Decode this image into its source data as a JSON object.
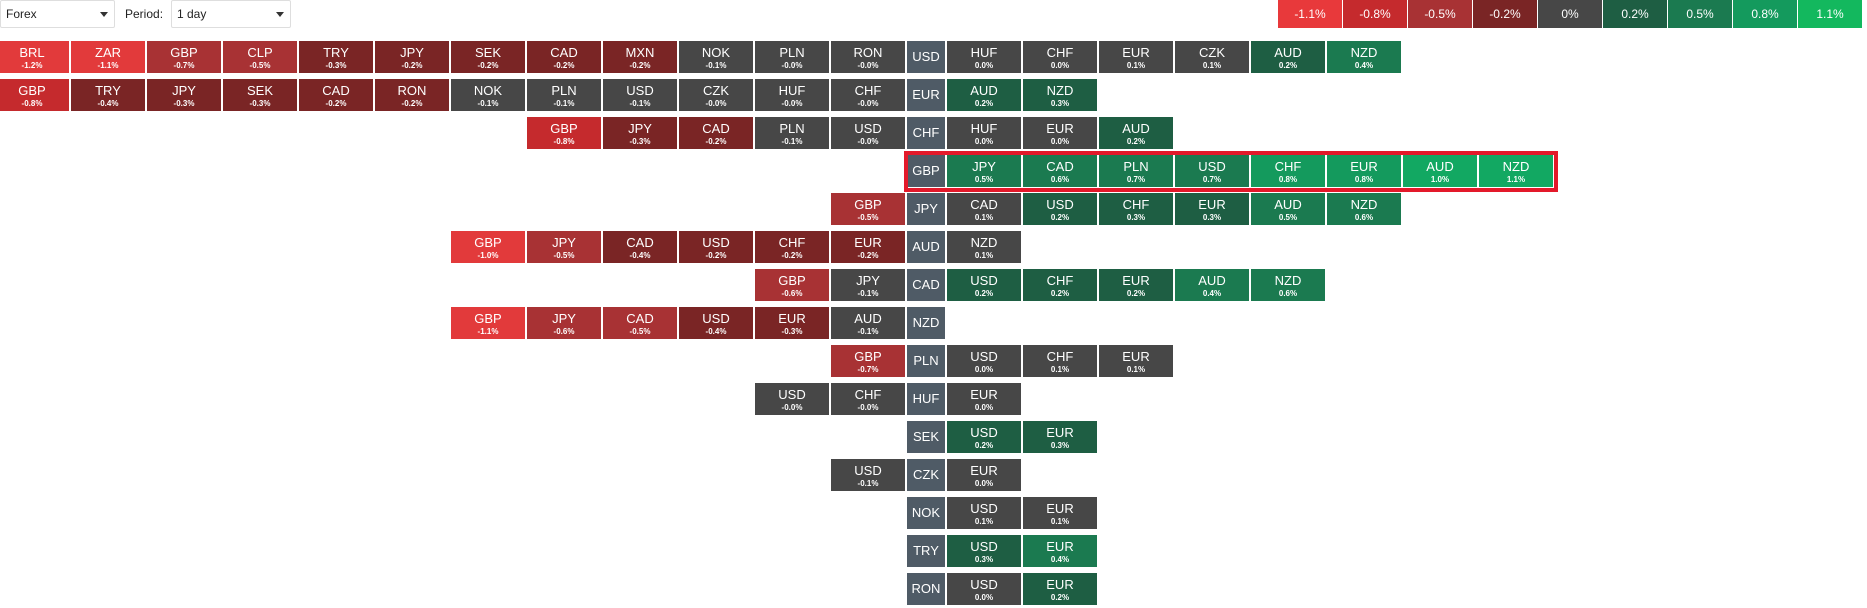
{
  "toolbar": {
    "market": "Forex",
    "period_label": "Period:",
    "period": "1 day"
  },
  "legend": [
    {
      "label": "-1.1%",
      "color": "#e8393b"
    },
    {
      "label": "-0.8%",
      "color": "#c52a2d"
    },
    {
      "label": "-0.5%",
      "color": "#a83234"
    },
    {
      "label": "-0.2%",
      "color": "#7a2525"
    },
    {
      "label": "0%",
      "color": "#474747"
    },
    {
      "label": "0.2%",
      "color": "#1e5e43"
    },
    {
      "label": "0.5%",
      "color": "#1b7a50"
    },
    {
      "label": "0.8%",
      "color": "#149a5d"
    },
    {
      "label": "1.1%",
      "color": "#13b85e"
    }
  ],
  "heatmap": {
    "rows": [
      {
        "base": "USD",
        "left": [
          [
            "BRL",
            "-1.2%"
          ],
          [
            "ZAR",
            "-1.1%"
          ],
          [
            "GBP",
            "-0.7%"
          ],
          [
            "CLP",
            "-0.5%"
          ],
          [
            "TRY",
            "-0.3%"
          ],
          [
            "JPY",
            "-0.2%"
          ],
          [
            "SEK",
            "-0.2%"
          ],
          [
            "CAD",
            "-0.2%"
          ],
          [
            "MXN",
            "-0.2%"
          ],
          [
            "NOK",
            "-0.1%"
          ],
          [
            "PLN",
            "-0.0%"
          ],
          [
            "RON",
            "-0.0%"
          ]
        ],
        "right": [
          [
            "HUF",
            "0.0%"
          ],
          [
            "CHF",
            "0.0%"
          ],
          [
            "EUR",
            "0.1%"
          ],
          [
            "CZK",
            "0.1%"
          ],
          [
            "AUD",
            "0.2%"
          ],
          [
            "NZD",
            "0.4%"
          ]
        ]
      },
      {
        "base": "EUR",
        "left": [
          [
            "GBP",
            "-0.8%"
          ],
          [
            "TRY",
            "-0.4%"
          ],
          [
            "JPY",
            "-0.3%"
          ],
          [
            "SEK",
            "-0.3%"
          ],
          [
            "CAD",
            "-0.2%"
          ],
          [
            "RON",
            "-0.2%"
          ],
          [
            "NOK",
            "-0.1%"
          ],
          [
            "PLN",
            "-0.1%"
          ],
          [
            "USD",
            "-0.1%"
          ],
          [
            "CZK",
            "-0.0%"
          ],
          [
            "HUF",
            "-0.0%"
          ],
          [
            "CHF",
            "-0.0%"
          ]
        ],
        "right": [
          [
            "AUD",
            "0.2%"
          ],
          [
            "NZD",
            "0.3%"
          ]
        ]
      },
      {
        "base": "CHF",
        "left": [
          [
            "GBP",
            "-0.8%"
          ],
          [
            "JPY",
            "-0.3%"
          ],
          [
            "CAD",
            "-0.2%"
          ],
          [
            "PLN",
            "-0.1%"
          ],
          [
            "USD",
            "-0.0%"
          ]
        ],
        "right": [
          [
            "HUF",
            "0.0%"
          ],
          [
            "EUR",
            "0.0%"
          ],
          [
            "AUD",
            "0.2%"
          ]
        ]
      },
      {
        "base": "GBP",
        "left": [],
        "right": [
          [
            "JPY",
            "0.5%"
          ],
          [
            "CAD",
            "0.6%"
          ],
          [
            "PLN",
            "0.7%"
          ],
          [
            "USD",
            "0.7%"
          ],
          [
            "CHF",
            "0.8%"
          ],
          [
            "EUR",
            "0.8%"
          ],
          [
            "AUD",
            "1.0%"
          ],
          [
            "NZD",
            "1.1%"
          ]
        ]
      },
      {
        "base": "JPY",
        "left": [
          [
            "GBP",
            "-0.5%"
          ]
        ],
        "right": [
          [
            "CAD",
            "0.1%"
          ],
          [
            "USD",
            "0.2%"
          ],
          [
            "CHF",
            "0.3%"
          ],
          [
            "EUR",
            "0.3%"
          ],
          [
            "AUD",
            "0.5%"
          ],
          [
            "NZD",
            "0.6%"
          ]
        ]
      },
      {
        "base": "AUD",
        "left": [
          [
            "GBP",
            "-1.0%"
          ],
          [
            "JPY",
            "-0.5%"
          ],
          [
            "CAD",
            "-0.4%"
          ],
          [
            "USD",
            "-0.2%"
          ],
          [
            "CHF",
            "-0.2%"
          ],
          [
            "EUR",
            "-0.2%"
          ]
        ],
        "right": [
          [
            "NZD",
            "0.1%"
          ]
        ]
      },
      {
        "base": "CAD",
        "left": [
          [
            "GBP",
            "-0.6%"
          ],
          [
            "JPY",
            "-0.1%"
          ]
        ],
        "right": [
          [
            "USD",
            "0.2%"
          ],
          [
            "CHF",
            "0.2%"
          ],
          [
            "EUR",
            "0.2%"
          ],
          [
            "AUD",
            "0.4%"
          ],
          [
            "NZD",
            "0.6%"
          ]
        ]
      },
      {
        "base": "NZD",
        "left": [
          [
            "GBP",
            "-1.1%"
          ],
          [
            "JPY",
            "-0.6%"
          ],
          [
            "CAD",
            "-0.5%"
          ],
          [
            "USD",
            "-0.4%"
          ],
          [
            "EUR",
            "-0.3%"
          ],
          [
            "AUD",
            "-0.1%"
          ]
        ],
        "right": []
      },
      {
        "base": "PLN",
        "left": [
          [
            "GBP",
            "-0.7%"
          ]
        ],
        "right": [
          [
            "USD",
            "0.0%"
          ],
          [
            "CHF",
            "0.1%"
          ],
          [
            "EUR",
            "0.1%"
          ]
        ]
      },
      {
        "base": "HUF",
        "left": [
          [
            "USD",
            "-0.0%"
          ],
          [
            "CHF",
            "-0.0%"
          ]
        ],
        "right": [
          [
            "EUR",
            "0.0%"
          ]
        ]
      },
      {
        "base": "SEK",
        "left": [],
        "right": [
          [
            "USD",
            "0.2%"
          ],
          [
            "EUR",
            "0.3%"
          ]
        ]
      },
      {
        "base": "CZK",
        "left": [
          [
            "USD",
            "-0.1%"
          ]
        ],
        "right": [
          [
            "EUR",
            "0.0%"
          ]
        ]
      },
      {
        "base": "NOK",
        "left": [],
        "right": [
          [
            "USD",
            "0.1%"
          ],
          [
            "EUR",
            "0.1%"
          ]
        ]
      },
      {
        "base": "TRY",
        "left": [],
        "right": [
          [
            "USD",
            "0.3%"
          ],
          [
            "EUR",
            "0.4%"
          ]
        ]
      },
      {
        "base": "RON",
        "left": [],
        "right": [
          [
            "USD",
            "0.0%"
          ],
          [
            "EUR",
            "0.2%"
          ]
        ]
      }
    ]
  }
}
